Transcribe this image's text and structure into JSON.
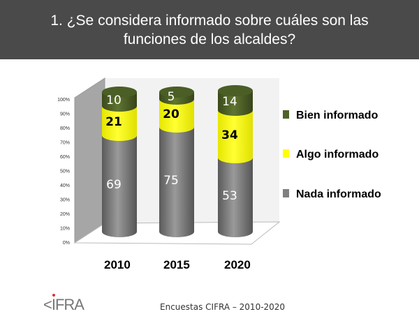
{
  "chart_data": {
    "type": "bar",
    "stacked": true,
    "title": "1. ¿Se considera informado sobre cuáles son las funciones de los alcaldes?",
    "categories": [
      "2010",
      "2015",
      "2020"
    ],
    "series": [
      {
        "name": "Nada informado",
        "values": [
          69,
          75,
          53
        ],
        "color": "#808080"
      },
      {
        "name": "Algo informado",
        "values": [
          21,
          20,
          34
        ],
        "color": "#ffff00"
      },
      {
        "name": "Bien informado",
        "values": [
          10,
          5,
          14
        ],
        "color": "#4f6228"
      }
    ],
    "yticks": [
      "0%",
      "10%",
      "20%",
      "30%",
      "40%",
      "50%",
      "60%",
      "70%",
      "80%",
      "90%",
      "100%"
    ],
    "ylim": [
      0,
      100
    ],
    "legend": "right"
  },
  "footer": "Encuestas CIFRA – 2010-2020",
  "logo": "CIFRA"
}
